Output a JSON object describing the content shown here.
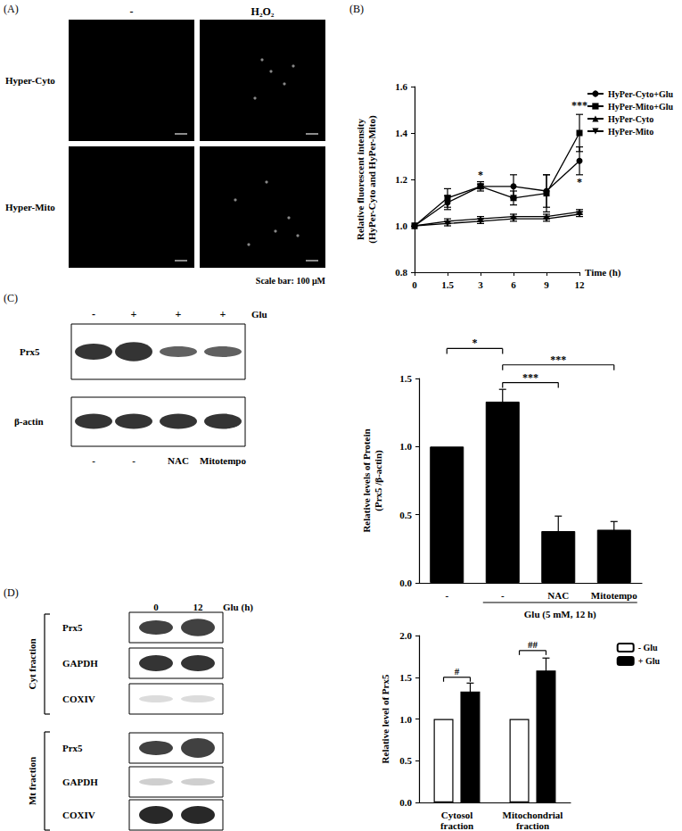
{
  "panel_labels": [
    "(A)",
    "(B)",
    "(C)",
    "(D)"
  ],
  "panel_a": {
    "columns": [
      "-",
      "H₂O₂"
    ],
    "rows": [
      "Hyper-Cyto",
      "Hyper-Mito"
    ],
    "scale_bar": "Scale bar: 100 μM"
  },
  "blot_c": {
    "treatment": "Glu",
    "treatment_signs": [
      "-",
      "+",
      "+",
      "+"
    ],
    "inhibitors": [
      "-",
      "-",
      "NAC",
      "Mitotempo"
    ],
    "rows": [
      "Prx5",
      "β-actin"
    ]
  },
  "blot_d": {
    "time_label": "Glu (h)",
    "times": [
      0,
      12
    ],
    "groups": [
      {
        "name": "Cyt fraction",
        "rows": [
          "Prx5",
          "GAPDH",
          "COXIV"
        ]
      },
      {
        "name": "Mt fraction",
        "rows": [
          "Prx5",
          "GAPDH",
          "COXIV"
        ]
      }
    ]
  },
  "chart_data": [
    {
      "type": "line",
      "xlabel": "Time (h)",
      "ylabel": "Relative fluorescent intensity\n(HyPer-Cyto and HyPer-Mito)",
      "categories": [
        "0",
        "1.5",
        "3",
        "6",
        "9",
        "12"
      ],
      "series": [
        {
          "name": "HyPer-Cyto+Glu",
          "color": "#000000",
          "marker": "circle",
          "values": [
            1.0,
            1.1,
            1.17,
            1.17,
            1.15,
            1.28
          ],
          "errors": [
            0,
            0.03,
            0.01,
            0.05,
            0.07,
            0.06
          ]
        },
        {
          "name": "HyPer-Mito+Glu",
          "color": "#000000",
          "marker": "square",
          "values": [
            1.0,
            1.12,
            1.17,
            1.12,
            1.14,
            1.4
          ],
          "errors": [
            0,
            0.04,
            0.02,
            0.03,
            0.08,
            0.08
          ]
        },
        {
          "name": "HyPer-Cyto",
          "color": "#000000",
          "marker": "triangle",
          "values": [
            1.0,
            1.02,
            1.03,
            1.04,
            1.04,
            1.06
          ],
          "errors": [
            0,
            0.01,
            0.01,
            0.01,
            0.01,
            0.01
          ]
        },
        {
          "name": "HyPer-Mito",
          "color": "#000000",
          "marker": "triangle-down",
          "values": [
            1.0,
            1.01,
            1.02,
            1.03,
            1.03,
            1.05
          ],
          "errors": [
            0,
            0.01,
            0.01,
            0.01,
            0.01,
            0.01
          ]
        }
      ],
      "ylim": [
        0.8,
        1.6
      ],
      "yticks": [
        0.8,
        {
          "value": 1,
          "label": "1.0"
        },
        1.2,
        1.4,
        1.6
      ],
      "grid": false,
      "legend": "right",
      "annotations": [
        {
          "text": "*",
          "x": "3",
          "y": 1.22
        },
        {
          "text": "***",
          "x": "12",
          "y": 1.52
        },
        {
          "text": "*",
          "x": "12",
          "y": 1.19
        }
      ]
    },
    {
      "type": "bar",
      "ylabel": "Relative levels of Protein\n(Prx5 /β-actin)",
      "categories": [
        "-",
        "-",
        "NAC",
        "Mitotempo"
      ],
      "values": [
        1.0,
        1.33,
        0.38,
        0.39
      ],
      "errors": [
        0,
        0.09,
        0.11,
        0.06
      ],
      "color": "#000000",
      "ylim": [
        0,
        1.5
      ],
      "yticks": [
        {
          "value": 0,
          "label": "0.0"
        },
        0.5,
        {
          "value": 1,
          "label": "1.0"
        },
        1.5
      ],
      "grid": false,
      "annotations": [
        {
          "text": "*",
          "from": 0,
          "to": 1,
          "y": 1.72
        },
        {
          "text": "***",
          "from": 1,
          "to": 3,
          "y": 1.6
        },
        {
          "text": "***",
          "from": 1,
          "to": 2,
          "y": 1.47
        },
        {
          "text": "Glu (5 mM, 12 h)",
          "from": 1,
          "to": 3,
          "position": "below"
        }
      ]
    },
    {
      "type": "bar",
      "ylabel": "Relative level of Prx5",
      "categories": [
        "Cytosol\nfraction",
        "Mitochondrial\nfraction"
      ],
      "series": [
        {
          "name": "- Glu",
          "color": "#ffffff",
          "values": [
            1.0,
            1.0
          ],
          "errors": [
            0,
            0
          ]
        },
        {
          "name": "+ Glu",
          "color": "#000000",
          "values": [
            1.33,
            1.58
          ],
          "errors": [
            0.1,
            0.15
          ]
        }
      ],
      "ylim": [
        0,
        2
      ],
      "yticks": [
        {
          "value": 0,
          "label": "0.0"
        },
        0.5,
        {
          "value": 1,
          "label": "1.0"
        },
        1.5,
        {
          "value": 2,
          "label": "2.0"
        }
      ],
      "grid": false,
      "legend": "upper right",
      "annotations": [
        {
          "text": "#",
          "category": 0,
          "y": 1.5
        },
        {
          "text": "##",
          "category": 1,
          "y": 1.82
        }
      ]
    }
  ]
}
